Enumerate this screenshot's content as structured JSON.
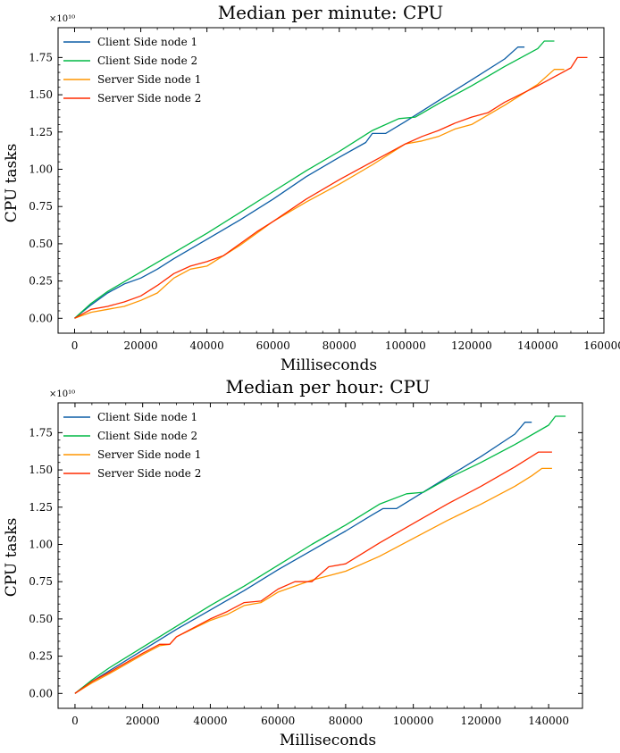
{
  "chart_data": [
    {
      "type": "line",
      "title": "Median per minute: CPU",
      "xlabel": "Milliseconds",
      "ylabel": "CPU tasks",
      "y_offset_label": "×10¹⁰",
      "xlim": [
        -5000,
        160000
      ],
      "ylim": [
        -0.1,
        1.95
      ],
      "xticks": [
        0,
        20000,
        40000,
        60000,
        80000,
        100000,
        120000,
        140000,
        160000
      ],
      "yticks": [
        0.0,
        0.25,
        0.5,
        0.75,
        1.0,
        1.25,
        1.5,
        1.75
      ],
      "ytick_labels": [
        "0.00",
        "0.25",
        "0.50",
        "0.75",
        "1.00",
        "1.25",
        "1.50",
        "1.75"
      ],
      "legend_position": "top-left",
      "grid": false,
      "series": [
        {
          "name": "Client Side node 1",
          "color": "#0C5DA5",
          "x": [
            0,
            5000,
            10000,
            15000,
            20000,
            25000,
            30000,
            40000,
            50000,
            60000,
            70000,
            80000,
            88000,
            90000,
            94000,
            100000,
            110000,
            120000,
            130000,
            134000,
            136000
          ],
          "y": [
            0.0,
            0.09,
            0.17,
            0.23,
            0.27,
            0.33,
            0.4,
            0.53,
            0.66,
            0.8,
            0.95,
            1.08,
            1.18,
            1.24,
            1.24,
            1.32,
            1.46,
            1.6,
            1.74,
            1.82,
            1.82
          ]
        },
        {
          "name": "Client Side node 2",
          "color": "#00B945",
          "x": [
            0,
            5000,
            10000,
            20000,
            30000,
            40000,
            50000,
            60000,
            70000,
            80000,
            90000,
            98000,
            103000,
            110000,
            120000,
            130000,
            140000,
            142000,
            145000
          ],
          "y": [
            0.0,
            0.1,
            0.18,
            0.31,
            0.44,
            0.57,
            0.71,
            0.85,
            0.99,
            1.12,
            1.26,
            1.34,
            1.35,
            1.44,
            1.56,
            1.69,
            1.81,
            1.86,
            1.86
          ]
        },
        {
          "name": "Server Side node 1",
          "color": "#FF9500",
          "x": [
            0,
            5000,
            10000,
            15000,
            20000,
            25000,
            30000,
            35000,
            40000,
            50000,
            60000,
            70000,
            80000,
            90000,
            100000,
            105000,
            110000,
            115000,
            120000,
            130000,
            140000,
            145000,
            148000
          ],
          "y": [
            0.0,
            0.04,
            0.06,
            0.08,
            0.12,
            0.17,
            0.27,
            0.33,
            0.35,
            0.49,
            0.65,
            0.78,
            0.9,
            1.03,
            1.17,
            1.19,
            1.22,
            1.27,
            1.3,
            1.43,
            1.57,
            1.67,
            1.67
          ]
        },
        {
          "name": "Server Side node 2",
          "color": "#FF2C00",
          "x": [
            0,
            5000,
            10000,
            15000,
            20000,
            25000,
            30000,
            35000,
            40000,
            45000,
            50000,
            55000,
            60000,
            70000,
            80000,
            90000,
            100000,
            105000,
            110000,
            115000,
            120000,
            125000,
            130000,
            140000,
            150000,
            152000,
            155000
          ],
          "y": [
            0.0,
            0.06,
            0.08,
            0.11,
            0.15,
            0.22,
            0.3,
            0.35,
            0.38,
            0.42,
            0.5,
            0.58,
            0.65,
            0.8,
            0.93,
            1.05,
            1.17,
            1.22,
            1.26,
            1.31,
            1.35,
            1.38,
            1.45,
            1.56,
            1.68,
            1.75,
            1.75
          ]
        }
      ]
    },
    {
      "type": "line",
      "title": "Median per hour: CPU",
      "xlabel": "Milliseconds",
      "ylabel": "CPU tasks",
      "y_offset_label": "×10¹⁰",
      "xlim": [
        -5000,
        150000
      ],
      "ylim": [
        -0.1,
        1.95
      ],
      "xticks": [
        0,
        20000,
        40000,
        60000,
        80000,
        100000,
        120000,
        140000
      ],
      "yticks": [
        0.0,
        0.25,
        0.5,
        0.75,
        1.0,
        1.25,
        1.5,
        1.75
      ],
      "ytick_labels": [
        "0.00",
        "0.25",
        "0.50",
        "0.75",
        "1.00",
        "1.25",
        "1.50",
        "1.75"
      ],
      "legend_position": "top-left",
      "grid": false,
      "series": [
        {
          "name": "Client Side node 1",
          "color": "#0C5DA5",
          "x": [
            0,
            5000,
            10000,
            20000,
            30000,
            40000,
            50000,
            60000,
            70000,
            80000,
            88000,
            91000,
            95000,
            100000,
            110000,
            120000,
            130000,
            133000,
            135000
          ],
          "y": [
            0.0,
            0.08,
            0.15,
            0.29,
            0.43,
            0.56,
            0.69,
            0.83,
            0.96,
            1.09,
            1.2,
            1.24,
            1.24,
            1.31,
            1.45,
            1.59,
            1.74,
            1.82,
            1.82
          ]
        },
        {
          "name": "Client Side node 2",
          "color": "#00B945",
          "x": [
            0,
            5000,
            10000,
            20000,
            30000,
            40000,
            50000,
            60000,
            70000,
            80000,
            90000,
            98000,
            103000,
            110000,
            120000,
            130000,
            140000,
            142000,
            145000
          ],
          "y": [
            0.0,
            0.09,
            0.17,
            0.31,
            0.45,
            0.59,
            0.72,
            0.86,
            1.0,
            1.13,
            1.27,
            1.34,
            1.35,
            1.44,
            1.55,
            1.67,
            1.8,
            1.86,
            1.86
          ]
        },
        {
          "name": "Server Side node 1",
          "color": "#FF9500",
          "x": [
            0,
            5000,
            10000,
            20000,
            25000,
            28000,
            30000,
            40000,
            45000,
            50000,
            55000,
            60000,
            70000,
            75000,
            80000,
            90000,
            100000,
            110000,
            120000,
            130000,
            135000,
            138000,
            141000
          ],
          "y": [
            0.0,
            0.07,
            0.13,
            0.26,
            0.32,
            0.33,
            0.38,
            0.49,
            0.53,
            0.59,
            0.61,
            0.68,
            0.76,
            0.79,
            0.82,
            0.92,
            1.04,
            1.16,
            1.27,
            1.39,
            1.46,
            1.51,
            1.51
          ]
        },
        {
          "name": "Server Side node 2",
          "color": "#FF2C00",
          "x": [
            0,
            5000,
            10000,
            20000,
            25000,
            28000,
            30000,
            40000,
            45000,
            50000,
            55000,
            60000,
            65000,
            70000,
            75000,
            80000,
            90000,
            100000,
            110000,
            120000,
            130000,
            137000,
            141000
          ],
          "y": [
            0.0,
            0.08,
            0.14,
            0.27,
            0.33,
            0.33,
            0.38,
            0.5,
            0.55,
            0.61,
            0.62,
            0.7,
            0.75,
            0.75,
            0.85,
            0.87,
            1.01,
            1.14,
            1.27,
            1.39,
            1.52,
            1.62,
            1.62
          ]
        }
      ]
    }
  ]
}
